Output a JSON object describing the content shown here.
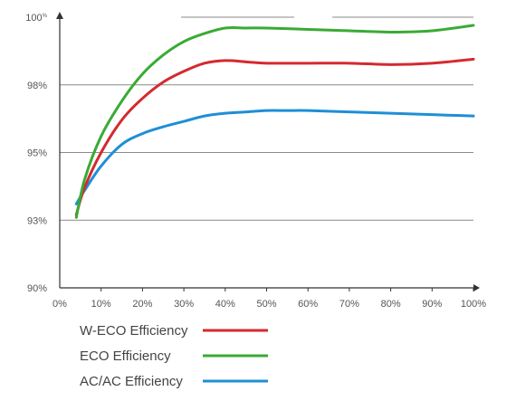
{
  "chart_data": {
    "type": "line",
    "title": "",
    "xlabel": "",
    "ylabel": "",
    "x_ticks": [
      "0%",
      "10%",
      "20%",
      "30%",
      "40%",
      "50%",
      "60%",
      "70%",
      "80%",
      "90%",
      "100%"
    ],
    "y_ticks": [
      {
        "value": 90,
        "label": "90%"
      },
      {
        "value": 92.5,
        "label": "93%"
      },
      {
        "value": 95,
        "label": "95%"
      },
      {
        "value": 97.5,
        "label": "98%"
      },
      {
        "value": 100,
        "label": "100",
        "sup": "%"
      }
    ],
    "xlim": [
      0,
      100
    ],
    "ylim": [
      90,
      100
    ],
    "grid": "horizontal",
    "legend_position": "bottom-left",
    "series": [
      {
        "name": "W-ECO Efficiency",
        "color": "#d42a2f",
        "x": [
          4,
          6,
          10,
          15,
          20,
          25,
          30,
          35,
          40,
          45,
          50,
          60,
          70,
          80,
          90,
          100
        ],
        "y": [
          92.7,
          93.7,
          95.0,
          96.2,
          97.0,
          97.6,
          98.0,
          98.3,
          98.4,
          98.35,
          98.3,
          98.3,
          98.3,
          98.25,
          98.3,
          98.45
        ]
      },
      {
        "name": "ECO Efficiency",
        "color": "#3aaa35",
        "x": [
          4,
          6,
          10,
          15,
          20,
          25,
          30,
          35,
          40,
          45,
          50,
          60,
          70,
          80,
          90,
          100
        ],
        "y": [
          92.6,
          94.0,
          95.6,
          96.9,
          97.9,
          98.6,
          99.1,
          99.4,
          99.6,
          99.6,
          99.6,
          99.55,
          99.5,
          99.45,
          99.5,
          99.7
        ]
      },
      {
        "name": "AC/AC Efficiency",
        "color": "#1e8fd5",
        "x": [
          4,
          6,
          10,
          15,
          20,
          25,
          30,
          35,
          40,
          45,
          50,
          55,
          60,
          70,
          80,
          90,
          100
        ],
        "y": [
          93.1,
          93.6,
          94.5,
          95.3,
          95.7,
          95.95,
          96.15,
          96.35,
          96.45,
          96.5,
          96.55,
          96.55,
          96.55,
          96.5,
          96.45,
          96.4,
          96.35
        ]
      }
    ]
  }
}
